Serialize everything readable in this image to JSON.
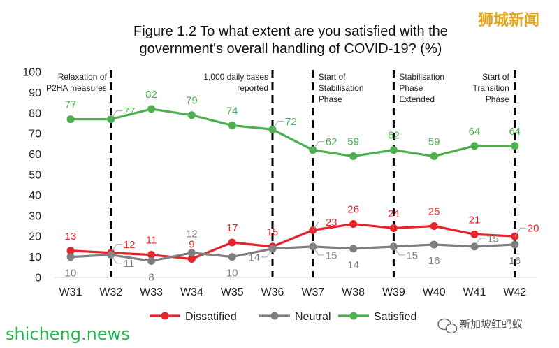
{
  "chart_data": {
    "type": "line",
    "title_lines": [
      "Figure 1.2 To what extent are you satisfied with the",
      "government's overall handling of COVID-19? (%)"
    ],
    "categories": [
      "W31",
      "W32",
      "W33",
      "W34",
      "W35",
      "W36",
      "W37",
      "W38",
      "W39",
      "W40",
      "W41",
      "W42"
    ],
    "ylim": [
      0,
      100
    ],
    "yticks": [
      0,
      10,
      20,
      30,
      40,
      50,
      60,
      70,
      80,
      90,
      100
    ],
    "series": [
      {
        "name": "Dissatified",
        "color": "#e5252a",
        "values": [
          13,
          12,
          11,
          9,
          17,
          15,
          23,
          26,
          24,
          25,
          21,
          20
        ]
      },
      {
        "name": "Neutral",
        "color": "#7f7f7f",
        "values": [
          10,
          11,
          8,
          12,
          10,
          14,
          15,
          14,
          15,
          16,
          15,
          16
        ]
      },
      {
        "name": "Satisfied",
        "color": "#4caf50",
        "values": [
          77,
          77,
          82,
          79,
          74,
          72,
          62,
          59,
          62,
          59,
          64,
          64
        ]
      }
    ],
    "annotations": [
      {
        "at": "W32",
        "lines": [
          "Relaxation of",
          "P2HA measures"
        ]
      },
      {
        "at": "W36",
        "lines": [
          "1,000 daily cases",
          "reported"
        ]
      },
      {
        "at": "W37",
        "lines": [
          "Start of",
          "Stabilisation",
          "Phase"
        ]
      },
      {
        "at": "W39",
        "lines": [
          "Stabilisation",
          "Phase",
          "Extended"
        ]
      },
      {
        "at": "W42",
        "lines": [
          "Start of",
          "Transition",
          "Phase"
        ]
      }
    ],
    "legend_position": "bottom",
    "grid": false
  },
  "watermarks": {
    "top_right": "狮城新闻",
    "bottom_left": "shicheng.news",
    "bottom_right": "新加坡红蚂蚁"
  }
}
